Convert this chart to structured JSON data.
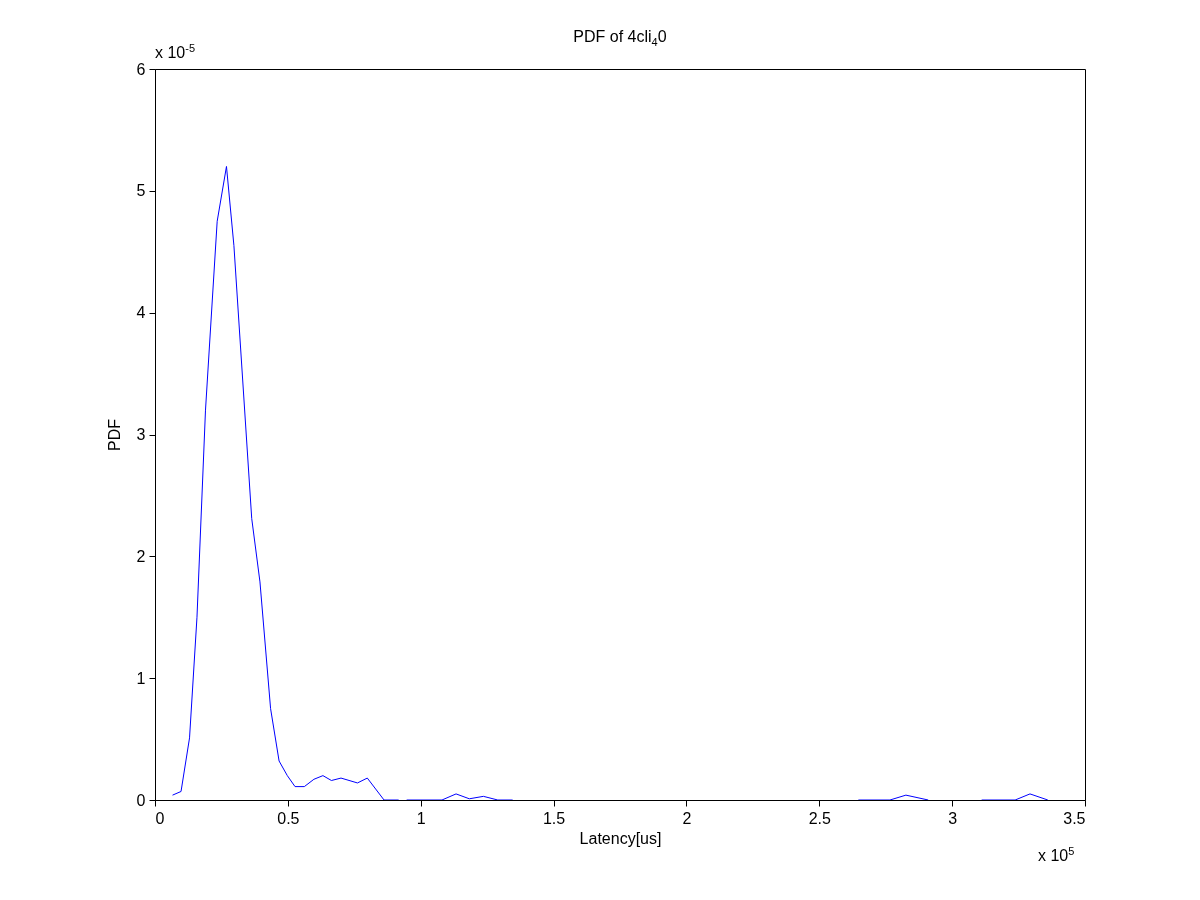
{
  "chart_data": {
    "type": "line",
    "title": "PDF of 4cli$_{4}$0",
    "xlabel": "Latency[us]",
    "ylabel": "PDF",
    "annotations": [
      "x 10$^{-5}$",
      "x 10$^{5}$"
    ],
    "series": [
      {
        "color": "#0000ff",
        "x": [
          0.066,
          0.098,
          0.13,
          0.158,
          0.19,
          0.234,
          0.269,
          0.297,
          0.364,
          0.395,
          0.435,
          0.467,
          0.498,
          0.527,
          0.562,
          0.598,
          0.632,
          0.664,
          0.7,
          0.762,
          0.799,
          0.862,
          0.917,
          0.93,
          0.947,
          1.08,
          1.133,
          1.183,
          1.236,
          1.29,
          1.346,
          2.0,
          2.647,
          2.766,
          2.826,
          2.91,
          3.0,
          3.111,
          3.237,
          3.293,
          3.36
        ],
        "values": [
          0.04,
          0.07,
          0.51,
          1.5,
          3.2,
          4.75,
          5.2,
          4.55,
          2.31,
          1.79,
          0.75,
          0.32,
          0.2,
          0.11,
          0.11,
          0.17,
          0.2,
          0.16,
          0.18,
          0.14,
          0.18,
          0,
          0,
          null,
          0,
          0,
          0.05,
          0.01,
          0.03,
          0,
          0,
          null,
          0,
          0,
          0.04,
          0,
          null,
          0,
          0,
          0.05,
          0
        ]
      }
    ],
    "xlim": [
      0,
      3.5
    ],
    "xticks": [
      0,
      0.5,
      1,
      1.5,
      2,
      2.5,
      3,
      3.5
    ],
    "ylim": [
      0,
      6
    ],
    "yticks": [
      0,
      1,
      2,
      3,
      4,
      5,
      6
    ],
    "grid": false
  }
}
